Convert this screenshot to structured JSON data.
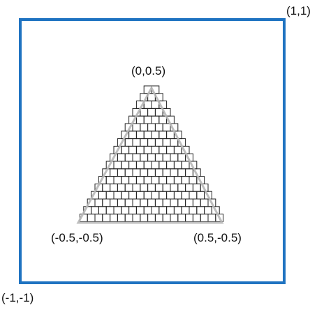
{
  "labels": {
    "top_right": "(1,1)",
    "bottom_left": "(-1,-1)",
    "apex": "(0,0.5)",
    "left_vertex": "(-0.5,-0.5)",
    "right_vertex": "(0.5,-0.5)"
  },
  "colors": {
    "viewport_border": "#1f73c1",
    "triangle_edge": "#b7b7b7",
    "pixel_grid": "#222222"
  },
  "triangle_vertices": {
    "apex": [
      0,
      0.5
    ],
    "left": [
      -0.5,
      -0.5
    ],
    "right": [
      0.5,
      -0.5
    ]
  },
  "viewport_bounds": {
    "min": [
      -1,
      -1
    ],
    "max": [
      1,
      1
    ]
  },
  "raster": {
    "rows": 18,
    "top_cells": 2,
    "bottom_cells": 19
  }
}
